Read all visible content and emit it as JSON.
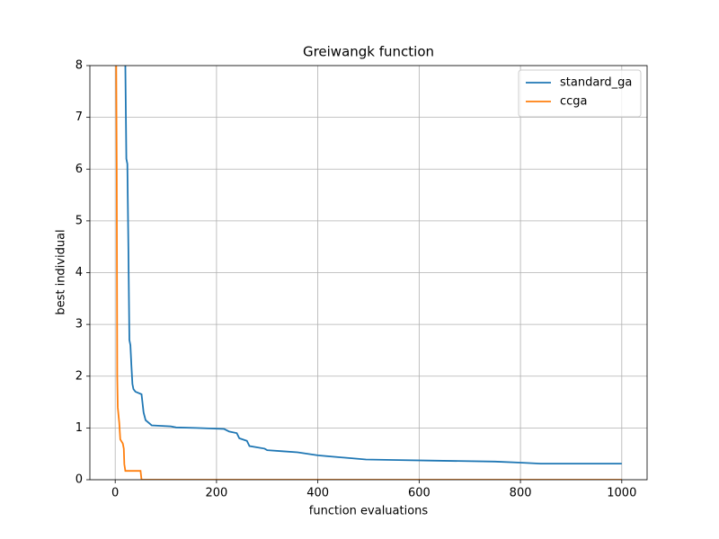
{
  "chart_data": {
    "type": "line",
    "title": "Greiwangk function",
    "x_label": "function evaluations",
    "y_label": "best individual",
    "xlim": [
      -50,
      1050
    ],
    "ylim": [
      0,
      8
    ],
    "xticks": [
      0,
      200,
      400,
      600,
      800,
      1000
    ],
    "yticks": [
      0,
      1,
      2,
      3,
      4,
      5,
      6,
      7,
      8
    ],
    "grid": true,
    "legend": "upper right",
    "series": [
      {
        "name": "standard_ga",
        "color": "#1f77b4",
        "x": [
          18,
          20,
          22,
          24,
          26,
          28,
          30,
          32,
          34,
          36,
          40,
          52,
          56,
          60,
          66,
          72,
          110,
          120,
          160,
          215,
          225,
          240,
          245,
          260,
          265,
          295,
          300,
          330,
          360,
          400,
          495,
          560,
          620,
          750,
          800,
          840,
          1000
        ],
        "values": [
          12,
          8.0,
          6.2,
          6.1,
          4.5,
          2.7,
          2.6,
          2.2,
          1.85,
          1.75,
          1.7,
          1.65,
          1.3,
          1.15,
          1.1,
          1.05,
          1.03,
          1.01,
          1.0,
          0.98,
          0.93,
          0.9,
          0.8,
          0.75,
          0.65,
          0.6,
          0.57,
          0.55,
          0.53,
          0.47,
          0.39,
          0.38,
          0.37,
          0.35,
          0.33,
          0.31,
          0.31
        ]
      },
      {
        "name": "ccga",
        "color": "#ff7f0e",
        "x": [
          0,
          3,
          4,
          5,
          8,
          10,
          15,
          17,
          18,
          20,
          50,
          52,
          1000
        ],
        "values": [
          12,
          6,
          2,
          1.4,
          1.1,
          0.78,
          0.7,
          0.6,
          0.3,
          0.17,
          0.17,
          0,
          0
        ]
      }
    ]
  }
}
